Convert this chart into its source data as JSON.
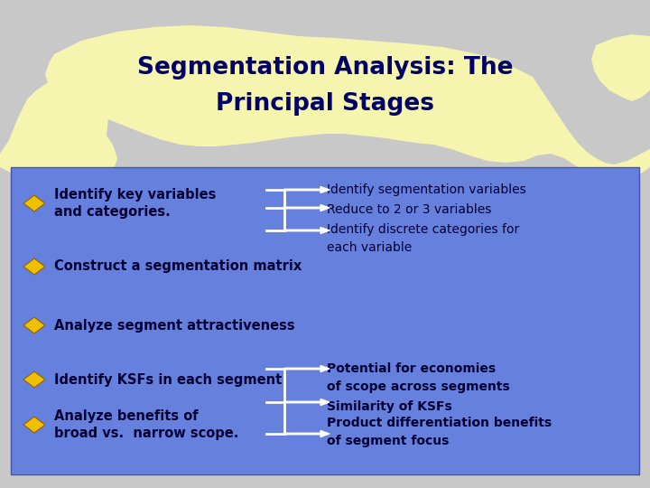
{
  "title_line1": "Segmentation Analysis: The",
  "title_line2": "Principal Stages",
  "bg_color": "#c8c8c8",
  "map_color": "#f5f5b0",
  "panel_color": "#6680dd",
  "title_color": "#000066",
  "bullet_color": "#f0c000",
  "text_color": "#000033",
  "bullets": [
    "Identify key variables\nand categories.",
    "Construct a segmentation matrix",
    "Analyze segment attractiveness",
    "Identify KSFs in each segment",
    "Analyze benefits of\nbroad vs.  narrow scope."
  ],
  "right_text_top": [
    "Identify segmentation variables",
    "Reduce to 2 or 3 variables",
    "Identify discrete categories for\neach variable"
  ],
  "right_text_bottom": [
    "Potential for economies",
    "of scope across segments",
    "Similarity of KSFs",
    "Product differentiation benefits",
    "of segment focus"
  ]
}
